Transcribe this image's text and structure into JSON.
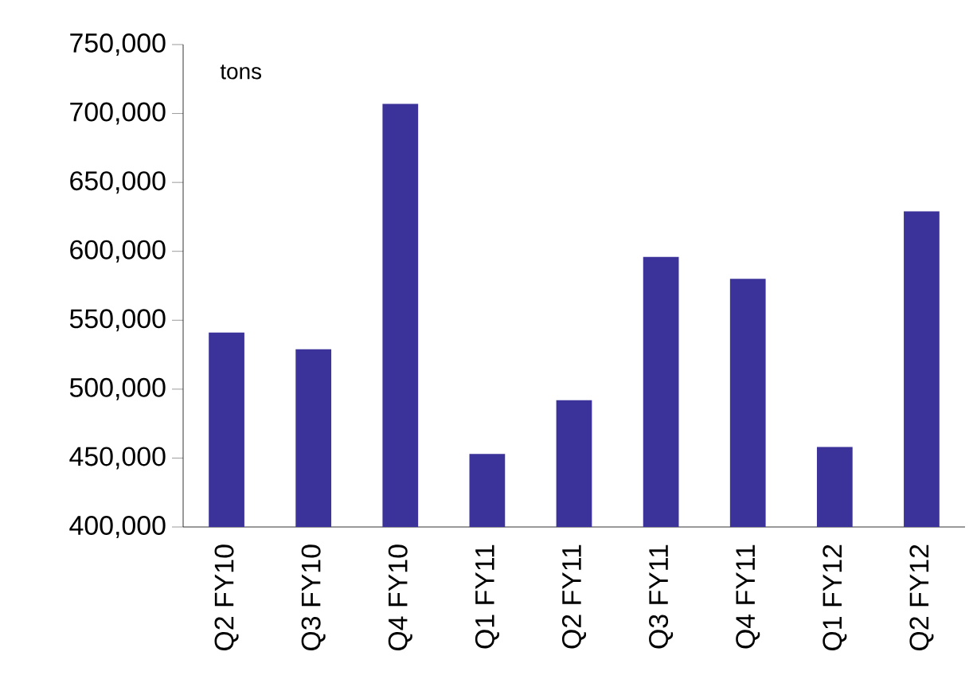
{
  "chart_data": {
    "type": "bar",
    "categories": [
      "Q2 FY10",
      "Q3 FY10",
      "Q4 FY10",
      "Q1 FY11",
      "Q2 FY11",
      "Q3 FY11",
      "Q4 FY11",
      "Q1 FY12",
      "Q2 FY12"
    ],
    "values": [
      541000,
      529000,
      707000,
      453000,
      492000,
      596000,
      580000,
      458000,
      629000
    ],
    "color": "#3b3399",
    "ylim": [
      400000,
      750000
    ],
    "yticks": [
      {
        "value": 400000,
        "label": "400,000"
      },
      {
        "value": 450000,
        "label": "450,000"
      },
      {
        "value": 500000,
        "label": "500,000"
      },
      {
        "value": 550000,
        "label": "550,000"
      },
      {
        "value": 600000,
        "label": "600,000"
      },
      {
        "value": 650000,
        "label": "650,000"
      },
      {
        "value": 700000,
        "label": "700,000"
      },
      {
        "value": 750000,
        "label": "750,000"
      }
    ],
    "annotations": [
      "tons"
    ],
    "grid": false
  }
}
